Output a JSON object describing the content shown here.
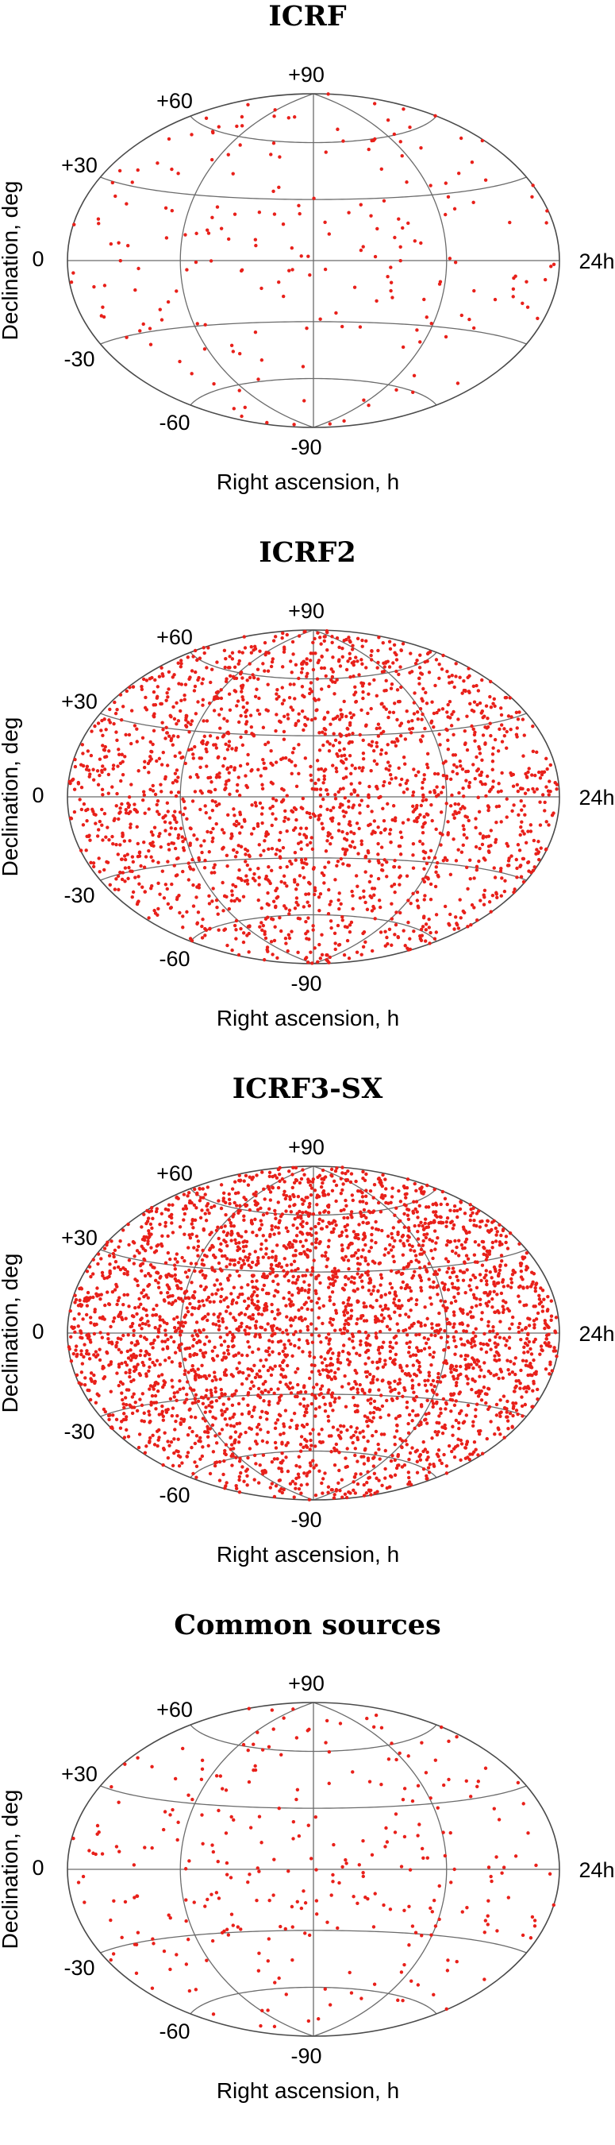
{
  "charts": [
    {
      "title": "ICRF",
      "count": 212,
      "south_weight": 0.5
    },
    {
      "title": "ICRF2",
      "count": 2100,
      "south_weight": 0.8
    },
    {
      "title": "ICRF3-SX",
      "count": 3400,
      "south_weight": 0.75
    },
    {
      "title": "Common sources",
      "count": 300,
      "south_weight": 0.55
    }
  ],
  "axes": {
    "xlabel": "Right ascension, h",
    "ylabel": "Declination, deg",
    "ticks": {
      "dec_p90": "+90",
      "dec_p60": "+60",
      "dec_p30": "+30",
      "dec_0": "0",
      "dec_m30": "-30",
      "dec_m60": "-60",
      "dec_m90": "-90",
      "ra_end": "24h"
    }
  },
  "chart_data": [
    {
      "type": "scatter",
      "title": "ICRF",
      "projection": "Aitoff",
      "xlabel": "Right ascension, h",
      "ylabel": "Declination, deg",
      "xlim": [
        0,
        24
      ],
      "ylim": [
        -90,
        90
      ],
      "grid": true,
      "marker_color": "#e8201a",
      "series": [
        {
          "n_points": 212
        }
      ]
    },
    {
      "type": "scatter",
      "title": "ICRF2",
      "projection": "Aitoff",
      "xlabel": "Right ascension, h",
      "ylabel": "Declination, deg",
      "xlim": [
        0,
        24
      ],
      "ylim": [
        -90,
        90
      ],
      "grid": true,
      "marker_color": "#e8201a",
      "series": [
        {
          "n_points": 2100
        }
      ]
    },
    {
      "type": "scatter",
      "title": "ICRF3-SX",
      "projection": "Aitoff",
      "xlabel": "Right ascension, h",
      "ylabel": "Declination, deg",
      "xlim": [
        0,
        24
      ],
      "ylim": [
        -90,
        90
      ],
      "grid": true,
      "marker_color": "#e8201a",
      "series": [
        {
          "n_points": 3400
        }
      ]
    },
    {
      "type": "scatter",
      "title": "Common sources",
      "projection": "Aitoff",
      "xlabel": "Right ascension, h",
      "ylabel": "Declination, deg",
      "xlim": [
        0,
        24
      ],
      "ylim": [
        -90,
        90
      ],
      "grid": true,
      "marker_color": "#e8201a",
      "series": [
        {
          "n_points": 300
        }
      ]
    }
  ],
  "colors": {
    "points": "#e8201a",
    "grid": "#6b6b6b",
    "frame": "#4a4a4a"
  }
}
